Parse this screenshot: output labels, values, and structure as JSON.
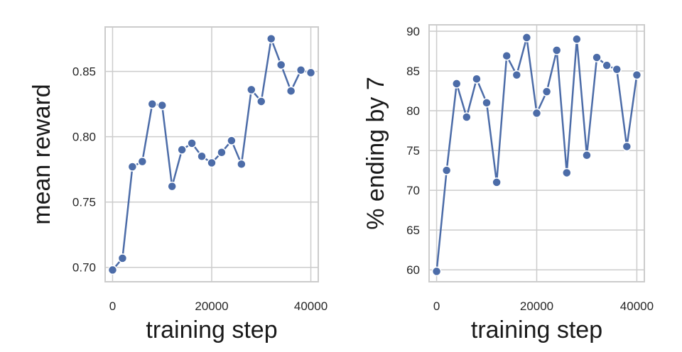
{
  "colors": {
    "series": "#4c6ca8"
  },
  "chart_data": [
    {
      "type": "line",
      "xlabel": "training step",
      "ylabel": "mean reward",
      "xlim": [
        -1500,
        41500
      ],
      "ylim": [
        0.689,
        0.884
      ],
      "xticks": [
        0,
        20000,
        40000
      ],
      "yticks": [
        0.7,
        0.75,
        0.8,
        0.85
      ],
      "xtick_labels": [
        "0",
        "20000",
        "40000"
      ],
      "ytick_labels": [
        "0.70",
        "0.75",
        "0.80",
        "0.85"
      ],
      "grid": true,
      "marker": "circle",
      "x": [
        0,
        2000,
        4000,
        6000,
        8000,
        10000,
        12000,
        14000,
        16000,
        18000,
        20000,
        22000,
        24000,
        26000,
        28000,
        30000,
        32000,
        34000,
        36000,
        38000,
        40000
      ],
      "values": [
        0.698,
        0.707,
        0.777,
        0.781,
        0.825,
        0.824,
        0.762,
        0.79,
        0.795,
        0.785,
        0.78,
        0.788,
        0.797,
        0.779,
        0.836,
        0.827,
        0.875,
        0.855,
        0.835,
        0.851,
        0.849
      ]
    },
    {
      "type": "line",
      "xlabel": "training step",
      "ylabel": "% ending by 7",
      "xlim": [
        -1500,
        41500
      ],
      "ylim": [
        58.5,
        90.8
      ],
      "xticks": [
        0,
        20000,
        40000
      ],
      "yticks": [
        60,
        65,
        70,
        75,
        80,
        85,
        90
      ],
      "xtick_labels": [
        "0",
        "20000",
        "40000"
      ],
      "ytick_labels": [
        "60",
        "65",
        "70",
        "75",
        "80",
        "85",
        "90"
      ],
      "grid": true,
      "marker": "circle",
      "x": [
        0,
        2000,
        4000,
        6000,
        8000,
        10000,
        12000,
        14000,
        16000,
        18000,
        20000,
        22000,
        24000,
        26000,
        28000,
        30000,
        32000,
        34000,
        36000,
        38000,
        40000
      ],
      "values": [
        59.8,
        72.5,
        83.4,
        79.2,
        84.0,
        81.0,
        71.0,
        86.9,
        84.5,
        89.2,
        79.7,
        82.4,
        87.6,
        72.2,
        89.0,
        74.4,
        86.7,
        85.7,
        85.2,
        75.5,
        84.5
      ]
    }
  ]
}
